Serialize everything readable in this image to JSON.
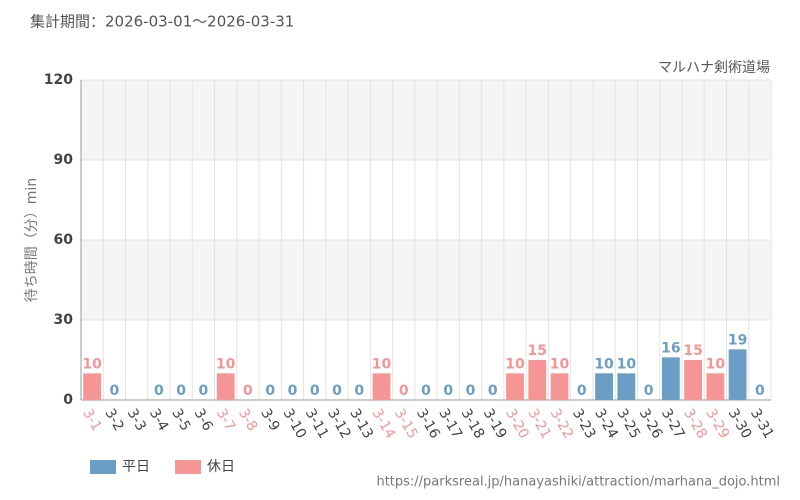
{
  "chart_data": {
    "type": "bar",
    "title": "集計期間：2026-03-01～2026-03-31",
    "subtitle": "マルハナ剣術道場",
    "y_label": "待ち時間（分）min",
    "source": "https://parksreal.jp/hanayashiki/attraction/marhana_dojo.html",
    "categories": [
      "3-1",
      "3-2",
      "3-3",
      "3-4",
      "3-5",
      "3-6",
      "3-7",
      "3-8",
      "3-9",
      "3-10",
      "3-11",
      "3-12",
      "3-13",
      "3-14",
      "3-15",
      "3-16",
      "3-17",
      "3-18",
      "3-19",
      "3-20",
      "3-21",
      "3-22",
      "3-23",
      "3-24",
      "3-25",
      "3-26",
      "3-27",
      "3-28",
      "3-29",
      "3-30",
      "3-31"
    ],
    "series": [
      {
        "name": "平日",
        "color": "#6a9ec5",
        "values": [
          null,
          0,
          null,
          0,
          0,
          0,
          null,
          null,
          0,
          0,
          0,
          0,
          0,
          null,
          null,
          0,
          0,
          0,
          0,
          null,
          null,
          null,
          0,
          10,
          10,
          0,
          16,
          null,
          null,
          19,
          0
        ]
      },
      {
        "name": "休日",
        "color": "#f59595",
        "values": [
          10,
          null,
          null,
          null,
          null,
          null,
          10,
          0,
          null,
          null,
          null,
          null,
          null,
          10,
          0,
          null,
          null,
          null,
          null,
          10,
          15,
          10,
          null,
          null,
          null,
          null,
          null,
          15,
          10,
          null,
          null
        ]
      }
    ],
    "ylim": [
      0,
      120
    ],
    "yticks": [
      0,
      30,
      60,
      90,
      120
    ],
    "grid": true,
    "legend": "bottom-left"
  }
}
